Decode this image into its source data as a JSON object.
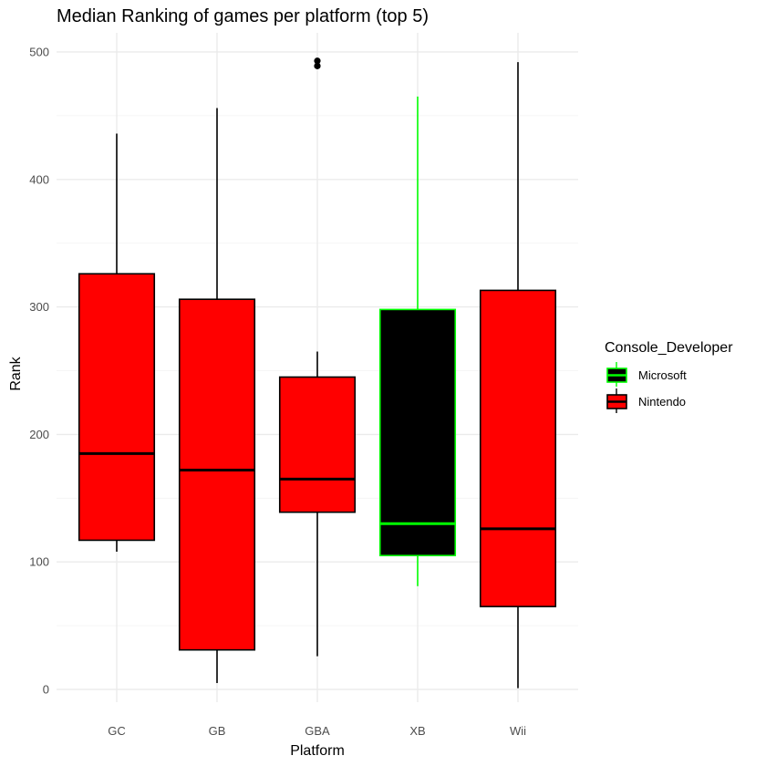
{
  "chart_data": {
    "type": "boxplot",
    "title": "Median Ranking of games per platform (top 5)",
    "xlabel": "Platform",
    "ylabel": "Rank",
    "ylim": [
      -10,
      515
    ],
    "y_ticks": [
      0,
      100,
      200,
      300,
      400,
      500
    ],
    "y_minor_ticks": [
      50,
      150,
      250,
      350,
      450
    ],
    "grid": true,
    "legend": {
      "title": "Console_Developer",
      "position": "right",
      "entries": [
        {
          "label": "Microsoft",
          "fill": "#000000",
          "stroke": "#00ff00"
        },
        {
          "label": "Nintendo",
          "fill": "#ff0000",
          "stroke": "#000000"
        }
      ]
    },
    "categories": [
      "GC",
      "GB",
      "GBA",
      "XB",
      "Wii"
    ],
    "boxes": [
      {
        "category": "GC",
        "developer": "Nintendo",
        "whisker_low": 108,
        "q1": 117,
        "median": 185,
        "q3": 326,
        "whisker_high": 436,
        "outliers": []
      },
      {
        "category": "GB",
        "developer": "Nintendo",
        "whisker_low": 5,
        "q1": 31,
        "median": 172,
        "q3": 306,
        "whisker_high": 456,
        "outliers": []
      },
      {
        "category": "GBA",
        "developer": "Nintendo",
        "whisker_low": 26,
        "q1": 139,
        "median": 165,
        "q3": 245,
        "whisker_high": 265,
        "outliers": [
          489,
          493
        ]
      },
      {
        "category": "XB",
        "developer": "Microsoft",
        "whisker_low": 81,
        "q1": 105,
        "median": 130,
        "q3": 298,
        "whisker_high": 465,
        "outliers": []
      },
      {
        "category": "Wii",
        "developer": "Nintendo",
        "whisker_low": 1,
        "q1": 65,
        "median": 126,
        "q3": 313,
        "whisker_high": 492,
        "outliers": []
      }
    ]
  }
}
